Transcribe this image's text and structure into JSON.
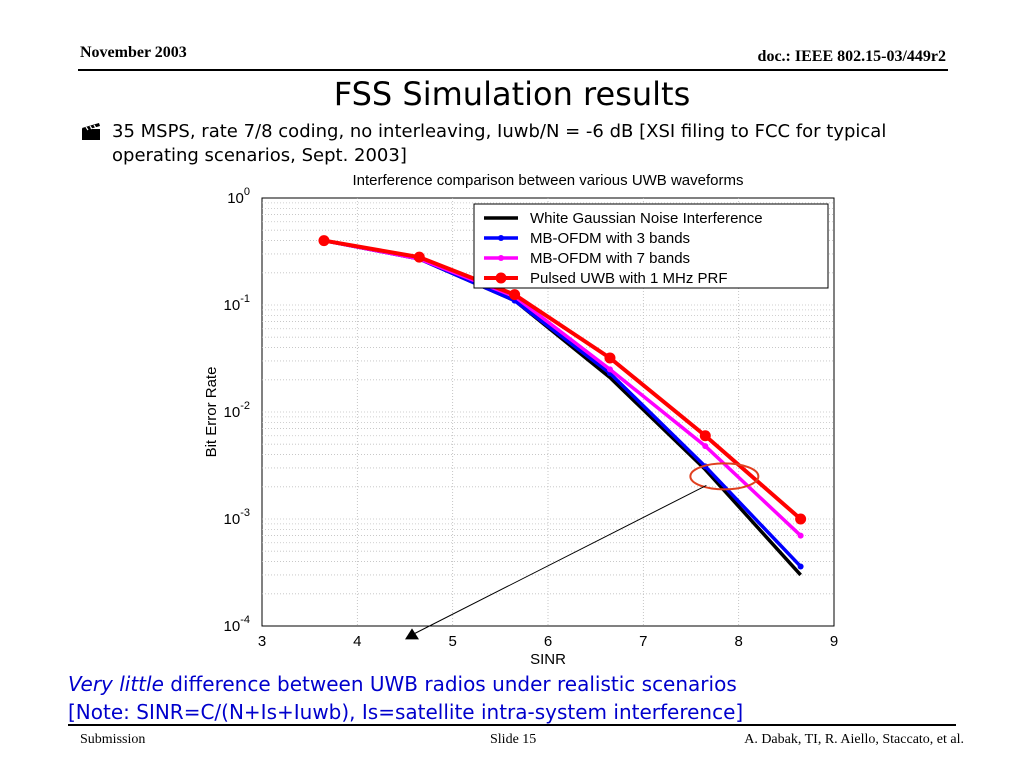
{
  "header": {
    "date": "November 2003",
    "doc_id": "doc.: IEEE 802.15-03/449r2"
  },
  "slide": {
    "title": "FSS Simulation results",
    "bullet_icon": "clapperboard-icon",
    "bullet": "35 MSPS, rate 7/8 coding, no interleaving, Iuwb/N = -6 dB [XSI filing to FCC for typical operating scenarios, Sept. 2003]"
  },
  "chart_data": {
    "type": "line",
    "title": "Interference comparison between various UWB waveforms",
    "xlabel": "SINR",
    "ylabel": "Bit Error Rate",
    "xlim": [
      3,
      9
    ],
    "ylim": [
      0.0001,
      1
    ],
    "yscale": "log",
    "grid": true,
    "legend_position": "top-right",
    "x_tick_labels": [
      "3",
      "4",
      "5",
      "6",
      "7",
      "8",
      "9"
    ],
    "y_tick_labels": [
      {
        "base": "10",
        "exp": "0"
      },
      {
        "base": "10",
        "exp": "-1"
      },
      {
        "base": "10",
        "exp": "-2"
      },
      {
        "base": "10",
        "exp": "-3"
      },
      {
        "base": "10",
        "exp": "-4"
      }
    ],
    "series": [
      {
        "name": "White Gaussian Noise Interference",
        "color": "#000000",
        "marker": "none",
        "x": [
          3.65,
          4.65,
          5.65,
          6.65,
          7.65,
          8.65
        ],
        "y": [
          0.4,
          0.27,
          0.11,
          0.021,
          0.0029,
          0.0003
        ]
      },
      {
        "name": "MB-OFDM with 3 bands",
        "color": "#0000ff",
        "marker": "small",
        "x": [
          3.65,
          4.65,
          5.65,
          6.65,
          7.65,
          8.65
        ],
        "y": [
          0.4,
          0.27,
          0.11,
          0.023,
          0.0031,
          0.00036
        ]
      },
      {
        "name": "MB-OFDM with 7 bands",
        "color": "#ff00ff",
        "marker": "small",
        "x": [
          3.65,
          4.65,
          5.65,
          6.65,
          7.65,
          8.65
        ],
        "y": [
          0.4,
          0.27,
          0.12,
          0.025,
          0.0048,
          0.0007
        ]
      },
      {
        "name": "Pulsed UWB with 1 MHz PRF",
        "color": "#ff0000",
        "marker": "large",
        "x": [
          3.65,
          4.65,
          5.65,
          6.65,
          7.65,
          8.65
        ],
        "y": [
          0.4,
          0.28,
          0.125,
          0.032,
          0.006,
          0.001
        ]
      }
    ],
    "annotation": {
      "ellipse_x": 7.85,
      "ellipse_y": 0.0025,
      "arrow_head_x": 4.5,
      "arrow_head_y": 7.5e-05
    }
  },
  "notes": {
    "line1_emphasis": "Very little",
    "line1_rest": " difference between UWB radios under realistic scenarios",
    "line2": "[Note: SINR=C/(N+Is+Iuwb), Is=satellite intra-system interference]"
  },
  "footer": {
    "left": "Submission",
    "center": "Slide 15",
    "right": "A. Dabak, TI, R. Aiello, Staccato, et al."
  }
}
